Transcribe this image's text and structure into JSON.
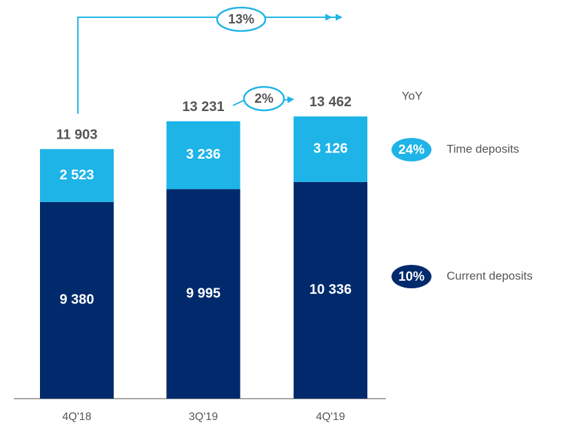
{
  "chart_data": {
    "type": "bar",
    "stacked": true,
    "categories": [
      "4Q'18",
      "3Q'19",
      "4Q'19"
    ],
    "series": [
      {
        "name": "Current deposits",
        "color": "#002a6c",
        "values": [
          9380,
          9995,
          10336
        ],
        "value_labels": [
          "9 380",
          "9 995",
          "10 336"
        ],
        "yoy": "10%"
      },
      {
        "name": "Time deposits",
        "color": "#1eb4e8",
        "values": [
          2523,
          3236,
          3126
        ],
        "value_labels": [
          "2 523",
          "3 236",
          "3 126"
        ],
        "yoy": "24%"
      }
    ],
    "totals": [
      11903,
      13231,
      13462
    ],
    "total_labels": [
      "11 903",
      "13 231",
      "13 462"
    ],
    "annotations": {
      "overall_growth": "13%",
      "quarter_growth": "2%",
      "yoy_header": "YoY"
    }
  }
}
